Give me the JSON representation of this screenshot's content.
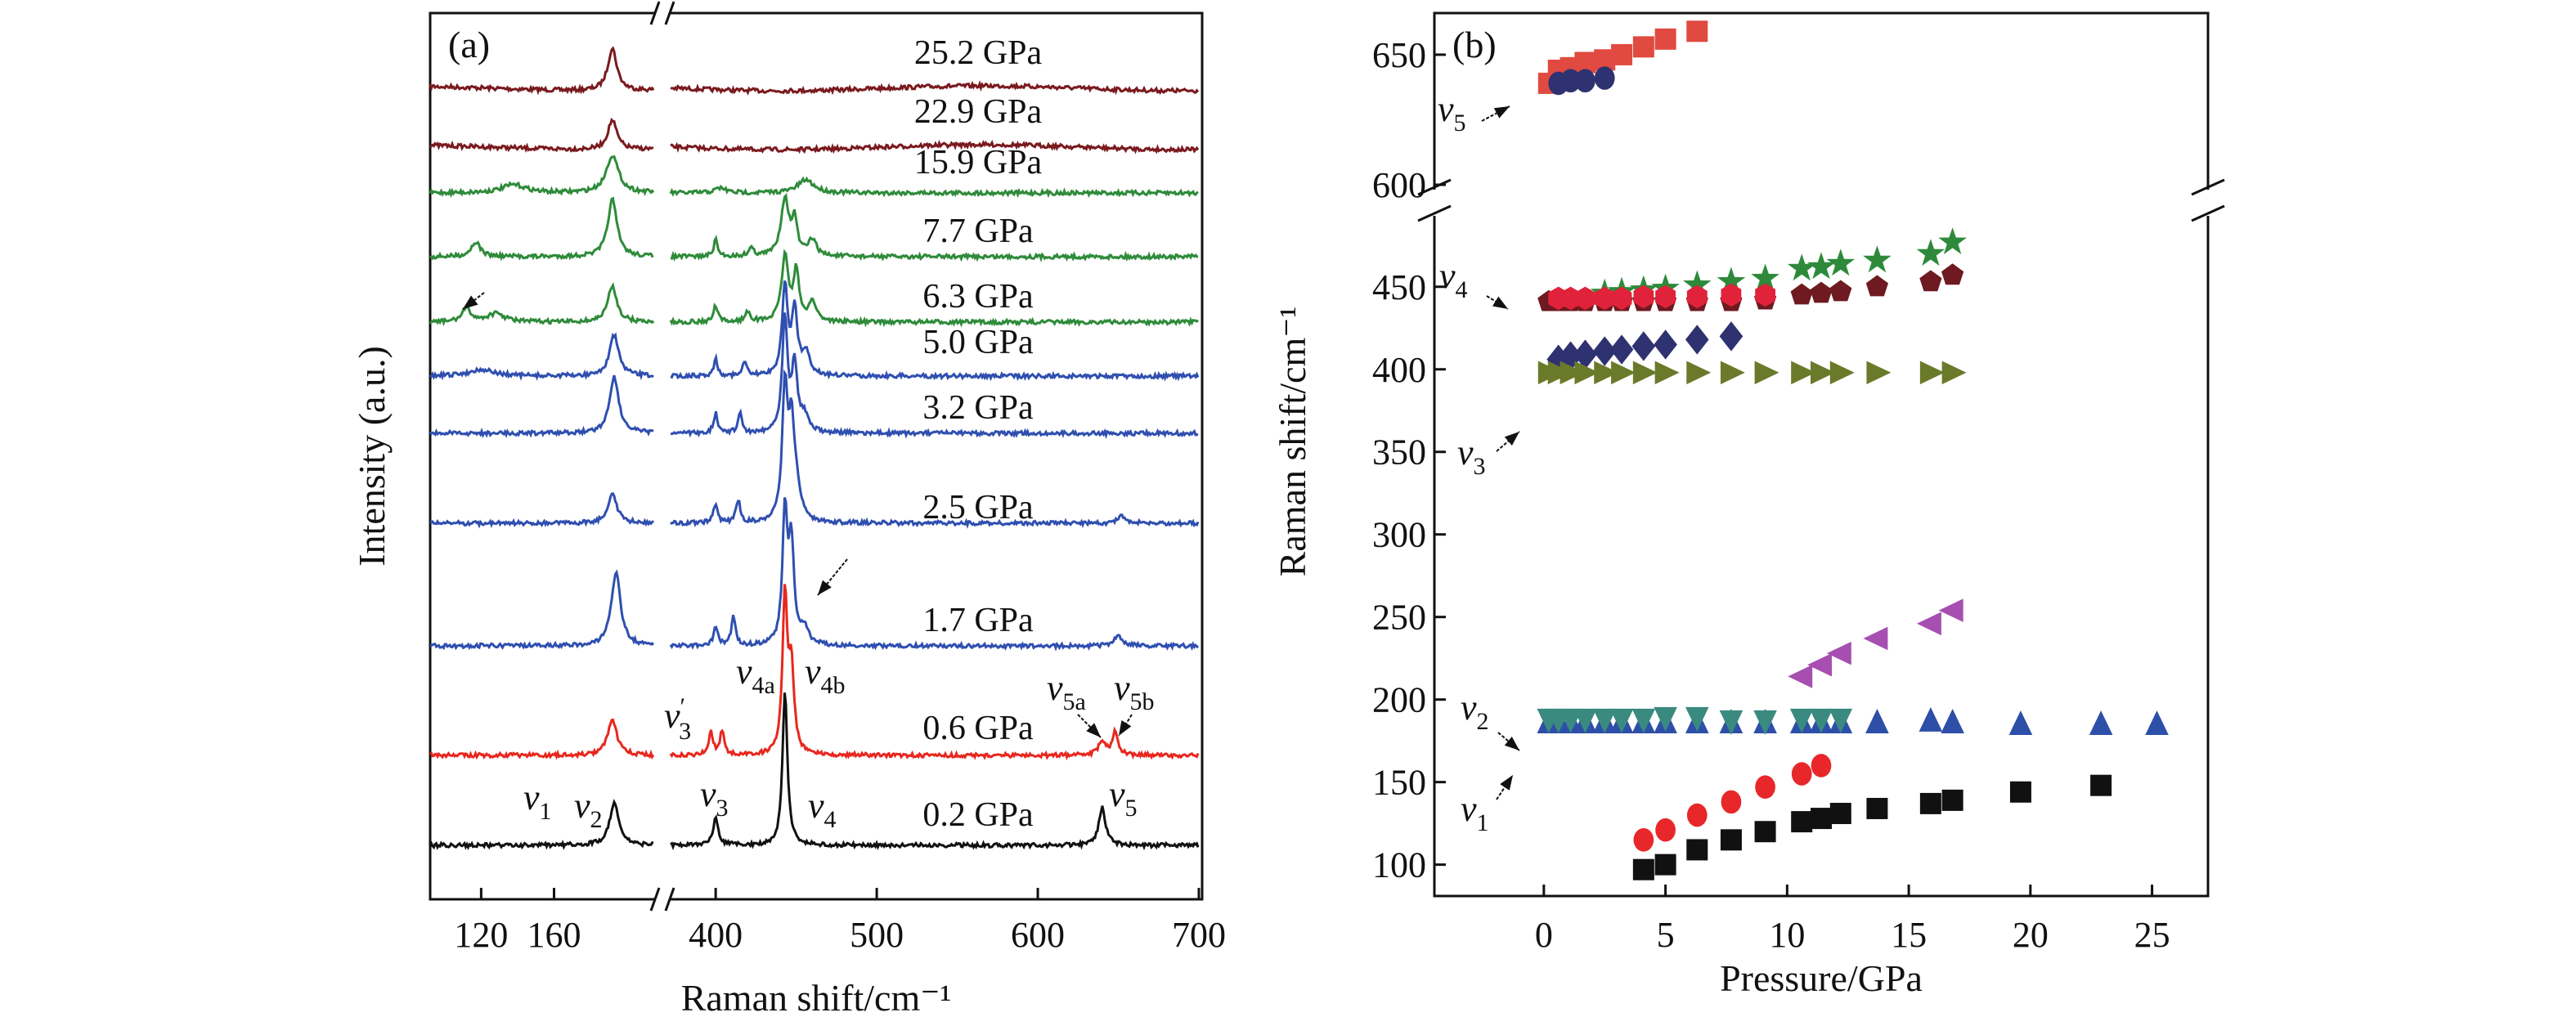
{
  "chart_data": [
    {
      "panel_label": "(a)",
      "type": "line",
      "xlabel": "Raman shift/cm⁻¹",
      "ylabel": "Intensity (a.u.)",
      "x_axis_break": true,
      "xlim_segments": [
        [
          92,
          215
        ],
        [
          372,
          700
        ]
      ],
      "xticks": [
        120,
        160,
        400,
        500,
        600,
        700
      ],
      "grid": false,
      "series": [
        {
          "name": "25.2 GPa",
          "color": "#7a1a1e",
          "peaks": [
            [
              192,
              2.6,
              3
            ]
          ]
        },
        {
          "name": "22.9 GPa",
          "color": "#7a1a1e",
          "peaks": [
            [
              192,
              1.8,
              3
            ]
          ]
        },
        {
          "name": "15.9 GPa",
          "color": "#2e8b3a",
          "peaks": [
            [
              192,
              2.3,
              4
            ],
            [
              138,
              0.5,
              8
            ],
            [
              403,
              0.3,
              4
            ],
            [
              456,
              0.8,
              6
            ]
          ]
        },
        {
          "name": "7.7 GPa",
          "color": "#2e8b3a",
          "peaks": [
            [
              192,
              3.5,
              3
            ],
            [
              117,
              0.9,
              3
            ],
            [
              400,
              1.0,
              1.5
            ],
            [
              422,
              0.5,
              2
            ],
            [
              443,
              3.5,
              3
            ],
            [
              449,
              2.0,
              2
            ],
            [
              460,
              1.0,
              3
            ]
          ]
        },
        {
          "name": "6.3 GPa",
          "color": "#2e8b3a",
          "peaks": [
            [
              192,
              2.2,
              3
            ],
            [
              112,
              0.8,
              3
            ],
            [
              128,
              0.5,
              6
            ],
            [
              400,
              1.0,
              1.5
            ],
            [
              420,
              0.6,
              2
            ],
            [
              443,
              4.0,
              2.5
            ],
            [
              450,
              3.0,
              2
            ],
            [
              460,
              1.2,
              3
            ]
          ]
        },
        {
          "name": "5.0 GPa",
          "color": "#2f4fb0",
          "peaks": [
            [
              193,
              2.5,
              3
            ],
            [
              120,
              0.4,
              8
            ],
            [
              400,
              1.0,
              1.5
            ],
            [
              418,
              0.8,
              1.5
            ],
            [
              443,
              5.5,
              2
            ],
            [
              449,
              4.0,
              2
            ],
            [
              456,
              1.3,
              3
            ]
          ]
        },
        {
          "name": "3.2 GPa",
          "color": "#2f4fb0",
          "peaks": [
            [
              193,
              3.5,
              3
            ],
            [
              400,
              1.2,
              1.5
            ],
            [
              415,
              1.2,
              1.5
            ],
            [
              443,
              7.0,
              2
            ],
            [
              449,
              4.0,
              2
            ],
            [
              455,
              1.0,
              3
            ]
          ]
        },
        {
          "name": "2.5 GPa",
          "color": "#2f4fb0",
          "peaks": [
            [
              192,
              1.8,
              3
            ],
            [
              400,
              1.2,
              1.5
            ],
            [
              414,
              1.4,
              1.5
            ],
            [
              443,
              8.0,
              2
            ],
            [
              447,
              5.0,
              2
            ],
            [
              450,
              2.0,
              3
            ],
            [
              652,
              0.4,
              3
            ]
          ]
        },
        {
          "name": "1.7 GPa",
          "color": "#2f4fb0",
          "peaks": [
            [
              194,
              4.5,
              3
            ],
            [
              400,
              1.2,
              1.5
            ],
            [
              411,
              1.8,
              1.5
            ],
            [
              443,
              8.0,
              1.8
            ],
            [
              447,
              6.0,
              2
            ],
            [
              455,
              1.0,
              3
            ],
            [
              650,
              0.6,
              3
            ]
          ]
        },
        {
          "name": "0.6 GPa",
          "color": "#e8271e",
          "peaks": [
            [
              192,
              2.2,
              3
            ],
            [
              397,
              1.5,
              1.5
            ],
            [
              404,
              1.5,
              1.5
            ],
            [
              443,
              9.5,
              1.8
            ],
            [
              447,
              5.0,
              2
            ],
            [
              640,
              0.8,
              3
            ],
            [
              648,
              1.4,
              2
            ]
          ]
        },
        {
          "name": "0.2 GPa",
          "color": "#111111",
          "peaks": [
            [
              193,
              2.6,
              3
            ],
            [
              400,
              1.6,
              2
            ],
            [
              443,
              9.5,
              1.8
            ],
            [
              640,
              2.3,
              2.5
            ]
          ]
        }
      ],
      "annotations": [
        {
          "base": "v",
          "sub": "1",
          "at": "0.2 GPa"
        },
        {
          "base": "v",
          "sub": "2",
          "at": "0.2 GPa"
        },
        {
          "base": "v",
          "sub": "3",
          "at": "0.2 GPa"
        },
        {
          "base": "v",
          "sub": "4",
          "at": "0.2 GPa"
        },
        {
          "base": "v",
          "sub": "5",
          "at": "0.2 GPa"
        },
        {
          "base": "v",
          "sub": "3",
          "prime": "′",
          "at": "0.6 GPa"
        },
        {
          "base": "v",
          "sub": "4a",
          "at": "0.6 GPa"
        },
        {
          "base": "v",
          "sub": "4b",
          "at": "0.6 GPa"
        },
        {
          "base": "v",
          "sub": "5a",
          "at": "0.6 GPa"
        },
        {
          "base": "v",
          "sub": "5b",
          "at": "0.6 GPa"
        }
      ]
    },
    {
      "panel_label": "(b)",
      "type": "scatter",
      "xlabel": "Pressure/GPa",
      "ylabel": "Raman shift/cm⁻¹",
      "xlim": [
        -4.5,
        27.3
      ],
      "xticks": [
        0,
        5,
        10,
        15,
        20,
        25
      ],
      "y_axis_break": true,
      "ylim_segments": [
        [
          81,
          490
        ],
        [
          600,
          666
        ]
      ],
      "yticks": [
        100,
        150,
        200,
        250,
        300,
        350,
        400,
        450,
        600,
        650
      ],
      "grid": false,
      "series": [
        {
          "marker": "square",
          "color": "#e04a40",
          "points": [
            [
              0.2,
              639
            ],
            [
              0.6,
              644
            ],
            [
              1.1,
              645
            ],
            [
              1.7,
              647
            ],
            [
              2.5,
              648
            ],
            [
              3.2,
              650
            ],
            [
              4.1,
              653
            ],
            [
              5.0,
              656
            ],
            [
              6.3,
              659
            ]
          ]
        },
        {
          "marker": "circle",
          "color": "#2e3270",
          "points": [
            [
              0.6,
              639
            ],
            [
              1.1,
              640
            ],
            [
              1.7,
              640
            ],
            [
              2.5,
              641
            ]
          ]
        },
        {
          "marker": "star",
          "color": "#2e8a3a",
          "points": [
            [
              2.5,
              446
            ],
            [
              3.2,
              447
            ],
            [
              4.1,
              448
            ],
            [
              5.0,
              449
            ],
            [
              6.3,
              451
            ],
            [
              7.7,
              453
            ],
            [
              9.1,
              455
            ],
            [
              10.6,
              461
            ],
            [
              11.4,
              462
            ],
            [
              12.2,
              464
            ],
            [
              13.7,
              466
            ],
            [
              15.9,
              470
            ],
            [
              16.8,
              477
            ]
          ]
        },
        {
          "marker": "pentagon",
          "color": "#6e1a20",
          "points": [
            [
              0.2,
              441
            ],
            [
              0.6,
              441
            ],
            [
              1.1,
              441
            ],
            [
              1.7,
              441
            ],
            [
              2.5,
              441
            ],
            [
              3.2,
              441
            ],
            [
              4.1,
              441
            ],
            [
              5.0,
              441
            ],
            [
              6.3,
              441
            ],
            [
              7.7,
              441
            ],
            [
              9.1,
              442
            ],
            [
              10.6,
              445
            ],
            [
              11.4,
              446
            ],
            [
              12.2,
              447
            ],
            [
              13.7,
              450
            ],
            [
              15.9,
              453
            ],
            [
              16.8,
              457
            ]
          ]
        },
        {
          "marker": "hexagon",
          "color": "#e0223a",
          "points": [
            [
              0.6,
              443
            ],
            [
              1.1,
              443
            ],
            [
              1.7,
              443
            ],
            [
              2.5,
              443
            ],
            [
              3.2,
              443
            ],
            [
              4.1,
              444
            ],
            [
              5.0,
              444
            ],
            [
              6.3,
              444
            ],
            [
              7.7,
              445
            ],
            [
              9.1,
              445
            ]
          ]
        },
        {
          "marker": "diamond",
          "color": "#2e3270",
          "points": [
            [
              0.6,
              406
            ],
            [
              1.1,
              408
            ],
            [
              1.7,
              409
            ],
            [
              2.5,
              411
            ],
            [
              3.2,
              412
            ],
            [
              4.1,
              414
            ],
            [
              5.0,
              415
            ],
            [
              6.3,
              418
            ],
            [
              7.7,
              420
            ]
          ]
        },
        {
          "marker": "triangle-right",
          "color": "#6b7a2a",
          "points": [
            [
              0.2,
              398
            ],
            [
              0.6,
              398
            ],
            [
              1.1,
              398
            ],
            [
              1.7,
              398
            ],
            [
              2.5,
              398
            ],
            [
              3.2,
              398
            ],
            [
              4.1,
              398
            ],
            [
              5.0,
              398
            ],
            [
              6.3,
              398
            ],
            [
              7.7,
              398
            ],
            [
              9.1,
              398
            ],
            [
              10.6,
              398
            ],
            [
              11.4,
              398
            ],
            [
              12.2,
              398
            ],
            [
              13.7,
              398
            ],
            [
              15.9,
              398
            ],
            [
              16.8,
              398
            ]
          ]
        },
        {
          "marker": "triangle-left",
          "color": "#a64fb0",
          "points": [
            [
              10.6,
              214
            ],
            [
              11.4,
              221
            ],
            [
              12.2,
              228
            ],
            [
              13.7,
              237
            ],
            [
              15.9,
              246
            ],
            [
              16.8,
              254
            ]
          ]
        },
        {
          "marker": "triangle-up",
          "color": "#2d4fa8",
          "points": [
            [
              0.2,
              186
            ],
            [
              0.6,
              186
            ],
            [
              1.1,
              186
            ],
            [
              1.7,
              186
            ],
            [
              2.5,
              186
            ],
            [
              3.2,
              186
            ],
            [
              4.1,
              186
            ],
            [
              5.0,
              186
            ],
            [
              6.3,
              186
            ],
            [
              7.7,
              186
            ],
            [
              9.1,
              186
            ],
            [
              10.6,
              186
            ],
            [
              11.4,
              186
            ],
            [
              12.2,
              186
            ],
            [
              13.7,
              186
            ],
            [
              15.9,
              187
            ],
            [
              16.8,
              186
            ],
            [
              19.6,
              185
            ],
            [
              22.9,
              185
            ],
            [
              25.2,
              185
            ]
          ]
        },
        {
          "marker": "triangle-down",
          "color": "#3a8a80",
          "points": [
            [
              0.2,
              188
            ],
            [
              0.6,
              188
            ],
            [
              1.1,
              188
            ],
            [
              1.7,
              188
            ],
            [
              2.5,
              188
            ],
            [
              3.2,
              188
            ],
            [
              4.1,
              188
            ],
            [
              5.0,
              189
            ],
            [
              6.3,
              189
            ],
            [
              7.7,
              187
            ],
            [
              9.1,
              187
            ],
            [
              10.6,
              188
            ],
            [
              11.4,
              188
            ],
            [
              12.2,
              188
            ]
          ]
        },
        {
          "marker": "circle",
          "color": "#e8272a",
          "points": [
            [
              4.1,
              115
            ],
            [
              5.0,
              121
            ],
            [
              6.3,
              130
            ],
            [
              7.7,
              138
            ],
            [
              9.1,
              147
            ],
            [
              10.6,
              155
            ],
            [
              11.4,
              160
            ]
          ]
        },
        {
          "marker": "square",
          "color": "#111111",
          "points": [
            [
              4.1,
              97
            ],
            [
              5.0,
              100
            ],
            [
              6.3,
              109
            ],
            [
              7.7,
              115
            ],
            [
              9.1,
              120
            ],
            [
              10.6,
              126
            ],
            [
              11.4,
              128
            ],
            [
              12.2,
              131
            ],
            [
              13.7,
              134
            ],
            [
              15.9,
              137
            ],
            [
              16.8,
              139
            ],
            [
              19.6,
              144
            ],
            [
              22.9,
              148
            ]
          ]
        }
      ],
      "annotations": [
        {
          "base": "v",
          "sub": "5"
        },
        {
          "base": "v",
          "sub": "4"
        },
        {
          "base": "v",
          "sub": "3"
        },
        {
          "base": "v",
          "sub": "2"
        },
        {
          "base": "v",
          "sub": "1"
        }
      ]
    }
  ]
}
